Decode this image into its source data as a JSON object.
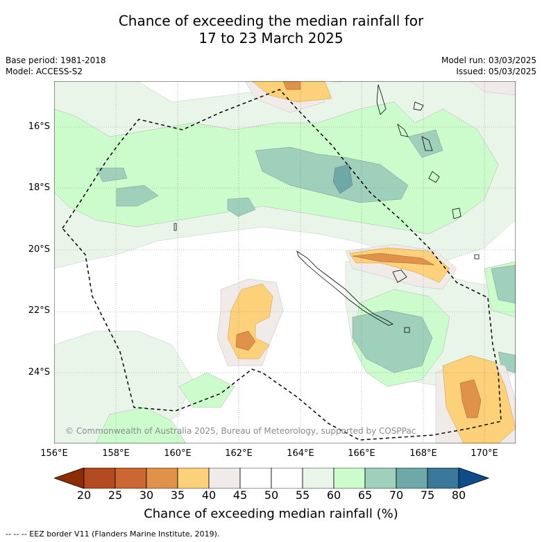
{
  "title": {
    "line1": "Chance of exceeding the median rainfall for",
    "line2": "17 to 23 March 2025"
  },
  "meta_left": {
    "base_period": "Base period: 1981-2018",
    "model": "Model: ACCESS-S2"
  },
  "meta_right": {
    "model_run": "Model run: 03/03/2025",
    "issued": "Issued: 05/03/2025"
  },
  "map": {
    "lat_labels": [
      "16°S",
      "18°S",
      "20°S",
      "22°S",
      "24°S"
    ],
    "lon_labels": [
      "156°E",
      "158°E",
      "160°E",
      "162°E",
      "164°E",
      "166°E",
      "168°E",
      "170°E"
    ],
    "copyright": "© Commonwealth of Australia 2025, Bureau of Meteorology, supported by COSPPac"
  },
  "colorbar": {
    "ticks": [
      "20",
      "25",
      "30",
      "35",
      "40",
      "45",
      "50",
      "55",
      "60",
      "65",
      "70",
      "75",
      "80"
    ],
    "colors": [
      "#8c2d04",
      "#b34a22",
      "#cc6633",
      "#e0924a",
      "#fdd07a",
      "#f0ebe8",
      "#ffffff",
      "#ffffff",
      "#eaf5ea",
      "#ccfccc",
      "#9fd0bb",
      "#6fa8a8",
      "#3a7899",
      "#0d4d8c"
    ],
    "title": "Chance of exceeding median rainfall (%)"
  },
  "footer": "-- -- -- EEZ border V11 (Flanders Marine Institute, 2019)."
}
